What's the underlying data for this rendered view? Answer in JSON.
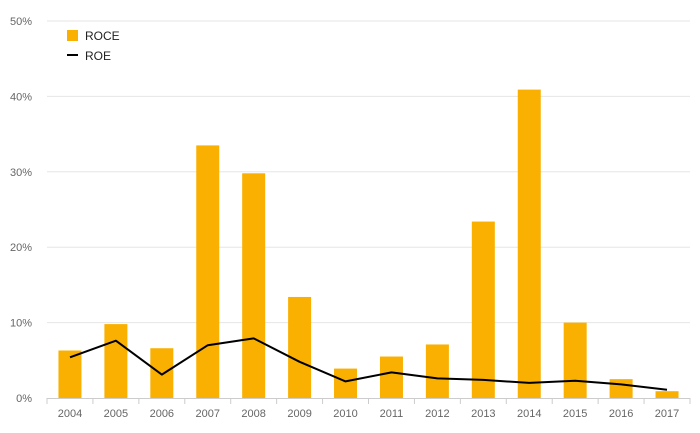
{
  "chart_data": {
    "type": "bar",
    "title": "",
    "xlabel": "",
    "ylabel": "",
    "categories": [
      "2004",
      "2005",
      "2006",
      "2007",
      "2008",
      "2009",
      "2010",
      "2011",
      "2012",
      "2013",
      "2014",
      "2015",
      "2016",
      "2017"
    ],
    "series": [
      {
        "name": "ROCE",
        "type": "bar",
        "color": "#F9B000",
        "values": [
          6.3,
          9.8,
          6.6,
          33.5,
          29.8,
          13.4,
          3.9,
          5.5,
          7.1,
          23.4,
          40.9,
          10.0,
          2.5,
          0.9
        ]
      },
      {
        "name": "ROE",
        "type": "line",
        "color": "#000000",
        "values": [
          5.4,
          7.6,
          3.1,
          7.0,
          7.9,
          4.8,
          2.2,
          3.4,
          2.6,
          2.4,
          2.0,
          2.3,
          1.8,
          1.1
        ]
      }
    ],
    "ylim": [
      0,
      50
    ],
    "yticks": [
      "0%",
      "10%",
      "20%",
      "30%",
      "40%",
      "50%"
    ],
    "grid": true,
    "legend_position": "top-left"
  }
}
